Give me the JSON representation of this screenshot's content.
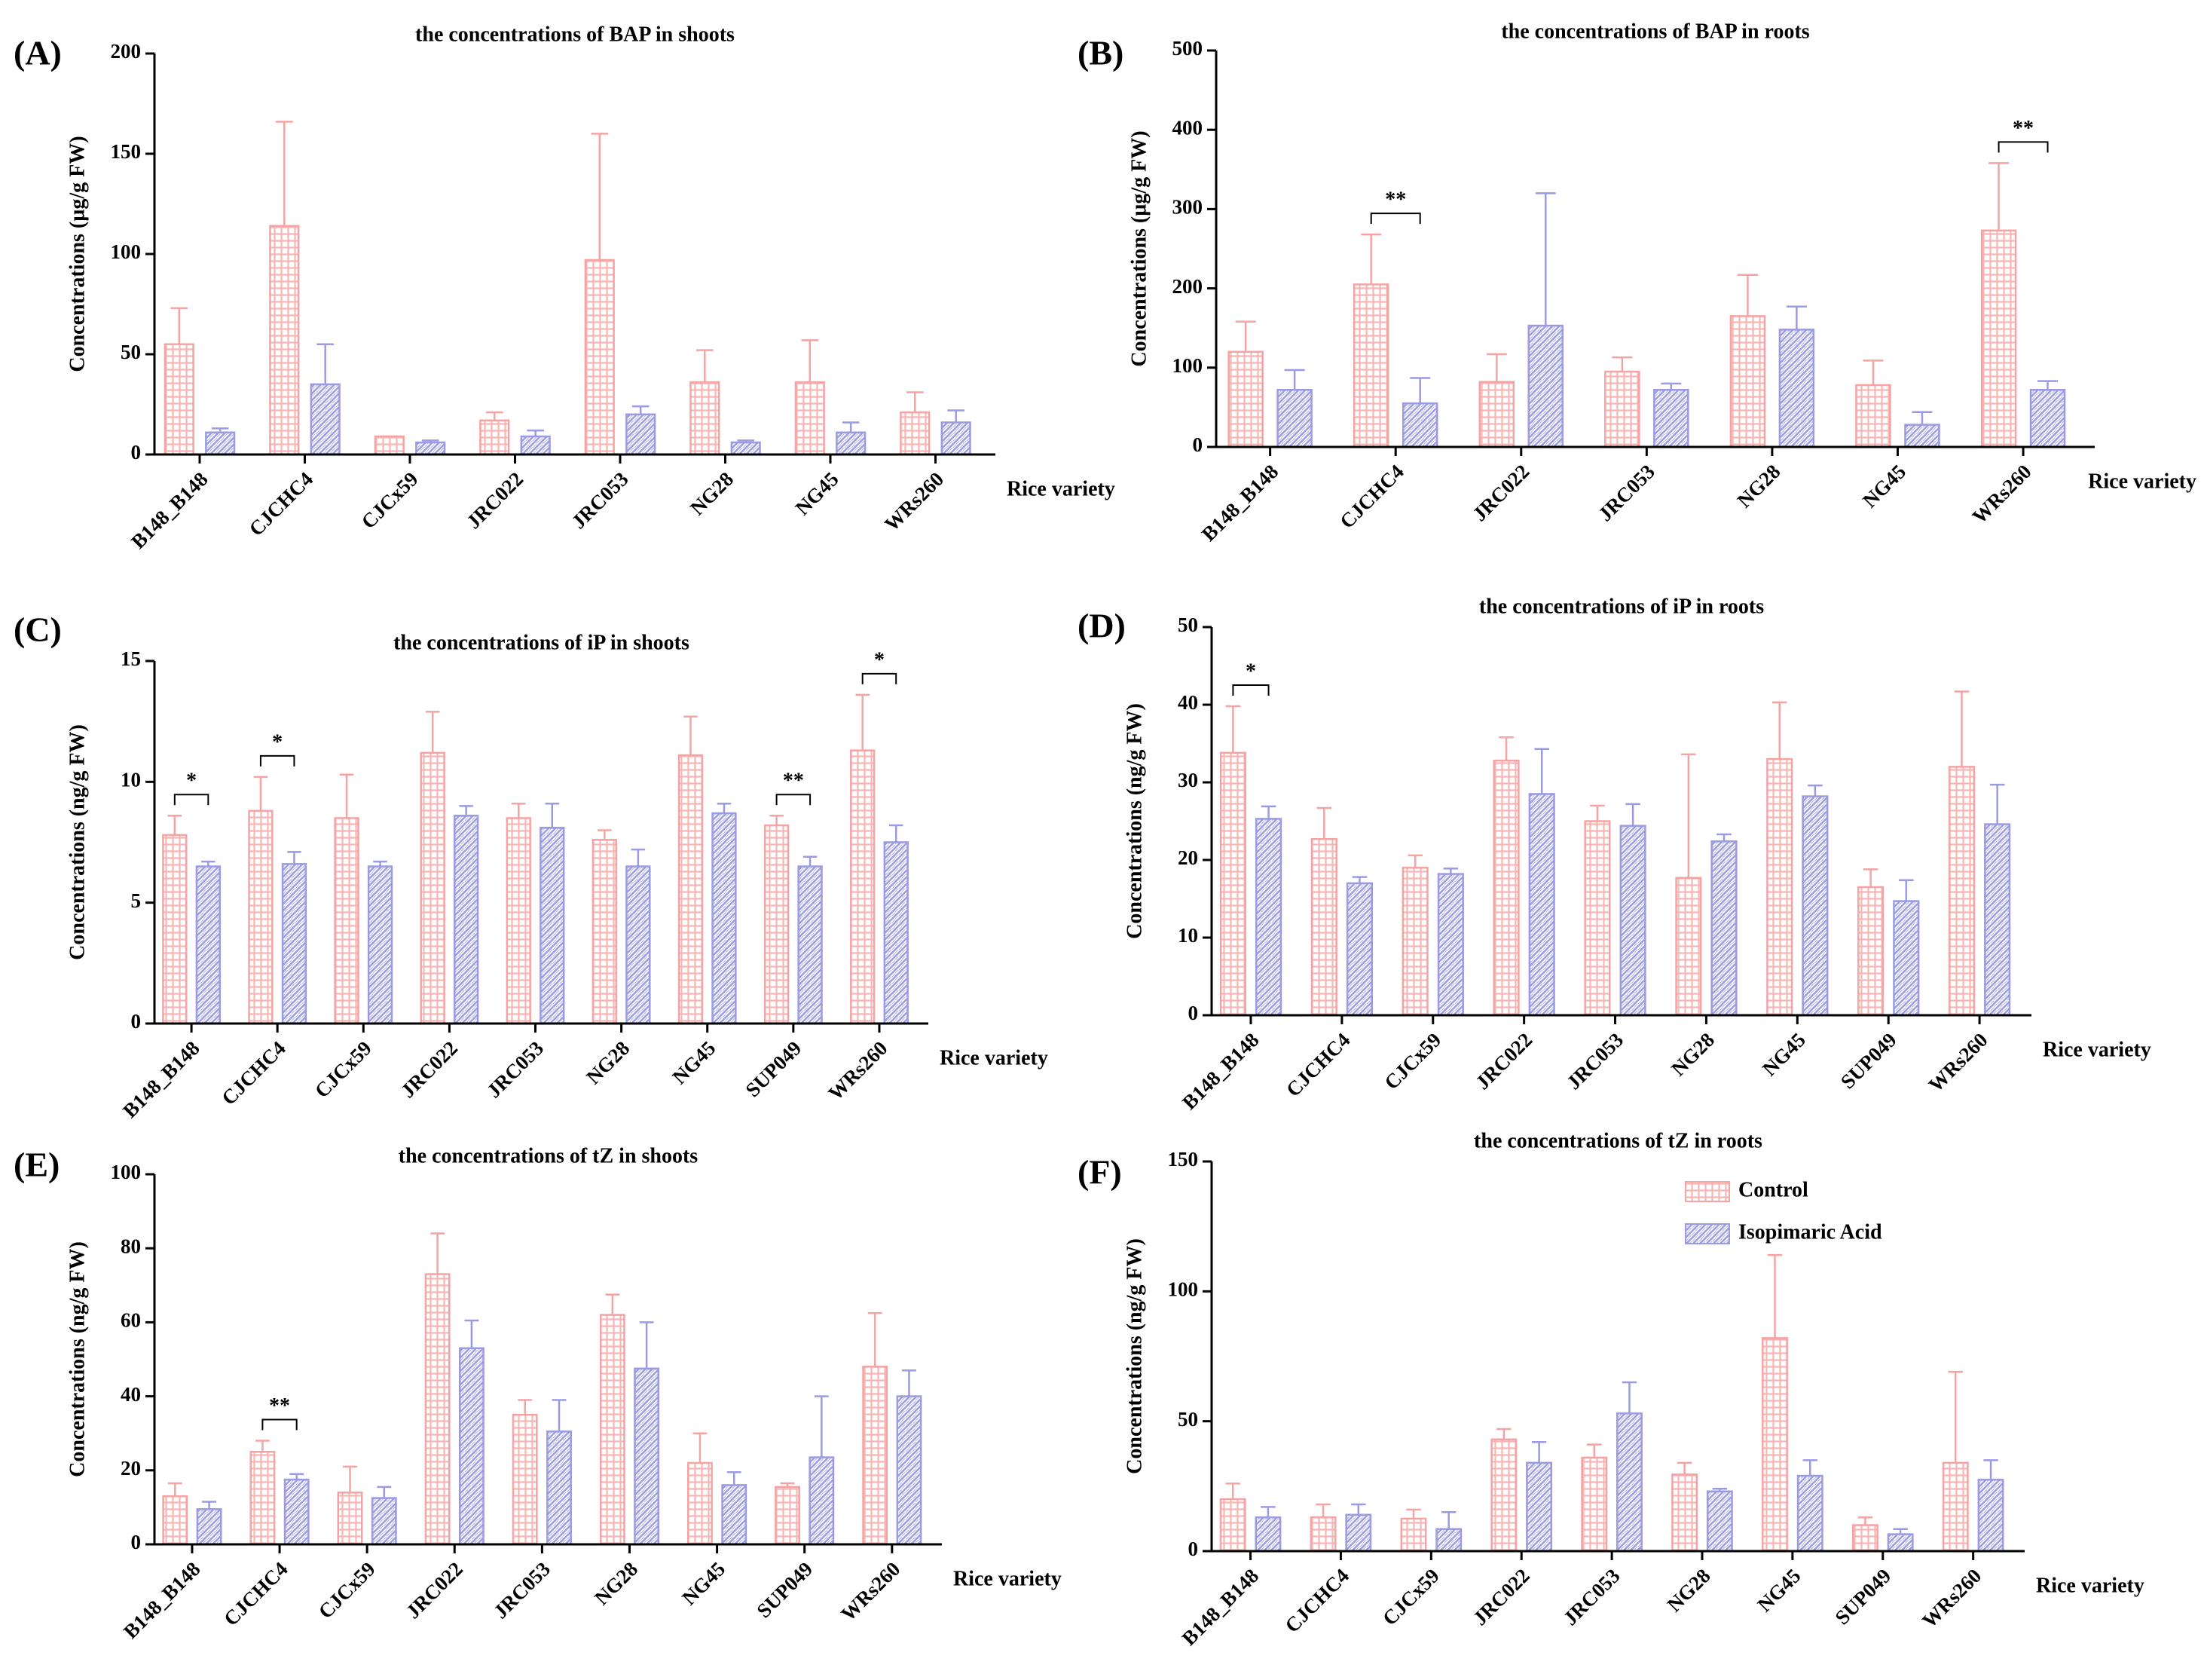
{
  "chart_data": [
    {
      "type": "bar",
      "panel": "(A)",
      "title": "the concentrations of BAP in shoots",
      "ylabel": "Concentrations (µg/g FW)",
      "xlabel": "Rice variety",
      "categories": [
        "B148_B148",
        "CJCHC4",
        "CJCx59",
        "JRC022",
        "JRC053",
        "NG28",
        "NG45",
        "WRs260"
      ],
      "series": [
        {
          "color": "#f5a3a3",
          "values": [
            55,
            114,
            9,
            17,
            97,
            36,
            36,
            21
          ],
          "errors": [
            18,
            52,
            0,
            4,
            63,
            16,
            21,
            10
          ]
        },
        {
          "color": "#9b9be3",
          "values": [
            11,
            35,
            6,
            9,
            20,
            6,
            11,
            16
          ],
          "errors": [
            2,
            20,
            1,
            3,
            4,
            1,
            5,
            6
          ]
        }
      ],
      "ylim": [
        0,
        200
      ],
      "yticks": [
        0,
        50,
        100,
        150,
        200
      ],
      "annotations": []
    },
    {
      "type": "bar",
      "panel": "(B)",
      "title": "the concentrations of BAP in roots",
      "ylabel": "Concentrations (µg/g FW)",
      "xlabel": "Rice variety",
      "categories": [
        "B148_B148",
        "CJCHC4",
        "JRC022",
        "JRC053",
        "NG28",
        "NG45",
        "WRs260"
      ],
      "series": [
        {
          "color": "#f5a3a3",
          "values": [
            120,
            205,
            82,
            95,
            165,
            78,
            273
          ],
          "errors": [
            38,
            63,
            35,
            18,
            52,
            31,
            85
          ]
        },
        {
          "color": "#9b9be3",
          "values": [
            72,
            55,
            153,
            72,
            148,
            28,
            72
          ],
          "errors": [
            25,
            32,
            167,
            8,
            29,
            16,
            11
          ]
        }
      ],
      "ylim": [
        0,
        500
      ],
      "yticks": [
        0,
        100,
        200,
        300,
        400,
        500
      ],
      "annotations": [
        {
          "text": "**",
          "category": "CJCHC4"
        },
        {
          "text": "**",
          "category": "WRs260"
        }
      ]
    },
    {
      "type": "bar",
      "panel": "(C)",
      "title": "the concentrations of iP in shoots",
      "ylabel": "Concentrations (ng/g FW)",
      "xlabel": "Rice variety",
      "categories": [
        "B148_B148",
        "CJCHC4",
        "CJCx59",
        "JRC022",
        "JRC053",
        "NG28",
        "NG45",
        "SUP049",
        "WRs260"
      ],
      "series": [
        {
          "color": "#f5a3a3",
          "values": [
            7.8,
            8.8,
            8.5,
            11.2,
            8.5,
            7.6,
            11.1,
            8.2,
            11.3
          ],
          "errors": [
            0.8,
            1.4,
            1.8,
            1.7,
            0.6,
            0.4,
            1.6,
            0.4,
            2.3
          ]
        },
        {
          "color": "#9b9be3",
          "values": [
            6.5,
            6.6,
            6.5,
            8.6,
            8.1,
            6.5,
            8.7,
            6.5,
            7.5
          ],
          "errors": [
            0.2,
            0.5,
            0.2,
            0.4,
            1.0,
            0.7,
            0.4,
            0.4,
            0.7
          ]
        }
      ],
      "ylim": [
        0,
        15
      ],
      "yticks": [
        0,
        5,
        10,
        15
      ],
      "annotations": [
        {
          "text": "*",
          "category": "B148_B148"
        },
        {
          "text": "*",
          "category": "CJCHC4"
        },
        {
          "text": "**",
          "category": "SUP049"
        },
        {
          "text": "*",
          "category": "WRs260"
        }
      ]
    },
    {
      "type": "bar",
      "panel": "(D)",
      "title": "the concentrations of iP in roots",
      "ylabel": "Concentrations (ng/g FW)",
      "xlabel": "Rice variety",
      "categories": [
        "B148_B148",
        "CJCHC4",
        "CJCx59",
        "JRC022",
        "JRC053",
        "NG28",
        "NG45",
        "SUP049",
        "WRs260"
      ],
      "series": [
        {
          "color": "#f5a3a3",
          "values": [
            33.8,
            22.7,
            19,
            32.8,
            25,
            17.7,
            33,
            16.5,
            32
          ],
          "errors": [
            6,
            4,
            1.6,
            3,
            2,
            15.9,
            7.3,
            2.3,
            9.7
          ]
        },
        {
          "color": "#9b9be3",
          "values": [
            25.3,
            17,
            18.2,
            28.5,
            24.4,
            22.4,
            28.2,
            14.7,
            24.6
          ],
          "errors": [
            1.6,
            0.8,
            0.7,
            5.8,
            2.8,
            0.9,
            1.4,
            2.7,
            5.1
          ]
        }
      ],
      "ylim": [
        0,
        50
      ],
      "yticks": [
        0,
        10,
        20,
        30,
        40,
        50
      ],
      "annotations": [
        {
          "text": "*",
          "category": "B148_B148"
        }
      ]
    },
    {
      "type": "bar",
      "panel": "(E)",
      "title": "the concentrations of tZ in shoots",
      "ylabel": "Concentrations (ng/g FW)",
      "xlabel": "Rice variety",
      "categories": [
        "B148_B148",
        "CJCHC4",
        "CJCx59",
        "JRC022",
        "JRC053",
        "NG28",
        "NG45",
        "SUP049",
        "WRs260"
      ],
      "series": [
        {
          "color": "#f5a3a3",
          "values": [
            13,
            25,
            14,
            73,
            35,
            62,
            22,
            15.5,
            48
          ],
          "errors": [
            3.5,
            3,
            7,
            11,
            4,
            5.5,
            8,
            1,
            14.5
          ]
        },
        {
          "color": "#9b9be3",
          "values": [
            9.5,
            17.5,
            12.5,
            53,
            30.5,
            47.5,
            16,
            23.5,
            40
          ],
          "errors": [
            2,
            1.5,
            3,
            7.5,
            8.5,
            12.5,
            3.5,
            16.5,
            7
          ]
        }
      ],
      "ylim": [
        0,
        100
      ],
      "yticks": [
        0,
        20,
        40,
        60,
        80,
        100
      ],
      "annotations": [
        {
          "text": "**",
          "category": "CJCHC4"
        }
      ]
    },
    {
      "type": "bar",
      "panel": "(F)",
      "title": "the concentrations of tZ in roots",
      "ylabel": "Concentrations (ng/g FW)",
      "xlabel": "Rice variety",
      "categories": [
        "B148_B148",
        "CJCHC4",
        "CJCx59",
        "JRC022",
        "JRC053",
        "NG28",
        "NG45",
        "SUP049",
        "WRs260"
      ],
      "series": [
        {
          "name": "Control",
          "color": "#f5a3a3",
          "values": [
            20,
            13,
            12.5,
            43,
            36,
            29.5,
            82,
            10,
            34
          ],
          "errors": [
            6,
            5,
            3.5,
            4,
            5,
            4.5,
            32,
            3,
            35
          ]
        },
        {
          "name": "Isopimaric Acid",
          "color": "#9b9be3",
          "values": [
            13,
            14,
            8.5,
            34,
            53,
            23,
            29,
            6.5,
            27.5
          ],
          "errors": [
            4,
            4,
            6.5,
            8,
            12,
            1,
            6,
            2,
            7.5
          ]
        }
      ],
      "ylim": [
        0,
        150
      ],
      "yticks": [
        0,
        50,
        100,
        150
      ],
      "legend": "upper right",
      "annotations": []
    }
  ]
}
